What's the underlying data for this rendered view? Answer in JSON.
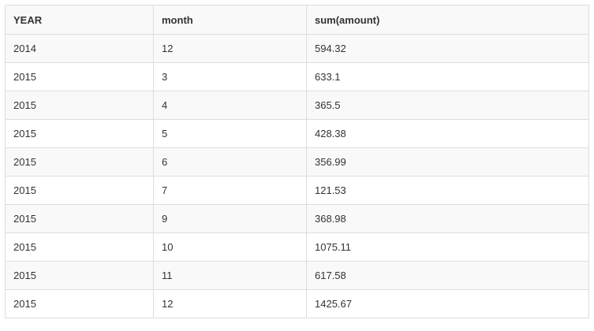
{
  "table": {
    "headers": [
      "YEAR",
      "month",
      "sum(amount)"
    ],
    "rows": [
      [
        "2014",
        "12",
        "594.32"
      ],
      [
        "2015",
        "3",
        "633.1"
      ],
      [
        "2015",
        "4",
        "365.5"
      ],
      [
        "2015",
        "5",
        "428.38"
      ],
      [
        "2015",
        "6",
        "356.99"
      ],
      [
        "2015",
        "7",
        "121.53"
      ],
      [
        "2015",
        "9",
        "368.98"
      ],
      [
        "2015",
        "10",
        "1075.11"
      ],
      [
        "2015",
        "11",
        "617.58"
      ],
      [
        "2015",
        "12",
        "1425.67"
      ]
    ]
  }
}
